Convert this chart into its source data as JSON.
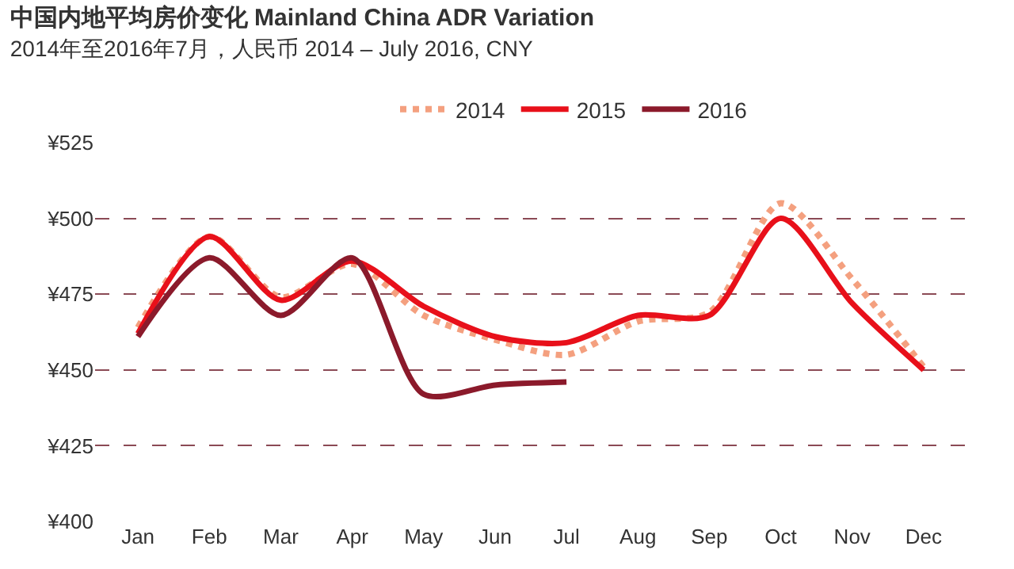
{
  "chart_data": {
    "type": "line",
    "title": "中国内地平均房价变化 Mainland China ADR Variation",
    "subtitle": "2014年至2016年7月，人民币 2014 – July 2016, CNY",
    "categories": [
      "Jan",
      "Feb",
      "Mar",
      "Apr",
      "May",
      "Jun",
      "Jul",
      "Aug",
      "Sep",
      "Oct",
      "Nov",
      "Dec"
    ],
    "series": [
      {
        "name": "2014",
        "color": "#f4a07f",
        "line_style": "dotted",
        "values": [
          464,
          494,
          474,
          485,
          468,
          460,
          455,
          466,
          469,
          505,
          480,
          451
        ]
      },
      {
        "name": "2015",
        "color": "#e8101a",
        "line_style": "solid",
        "values": [
          462,
          494,
          473,
          486,
          471,
          461,
          459,
          468,
          468,
          500,
          472,
          450
        ]
      },
      {
        "name": "2016",
        "color": "#8b1a2b",
        "line_style": "solid",
        "values": [
          461,
          487,
          468,
          487,
          442,
          445,
          446,
          null,
          null,
          null,
          null,
          null
        ]
      }
    ],
    "ylim": [
      400,
      525
    ],
    "yticks": [
      {
        "value": 400,
        "label": "¥400"
      },
      {
        "value": 425,
        "label": "¥425"
      },
      {
        "value": 450,
        "label": "¥450"
      },
      {
        "value": 475,
        "label": "¥475"
      },
      {
        "value": 500,
        "label": "¥500"
      },
      {
        "value": 525,
        "label": "¥525"
      }
    ],
    "grid": "y",
    "legend": "top",
    "marker": "none"
  }
}
